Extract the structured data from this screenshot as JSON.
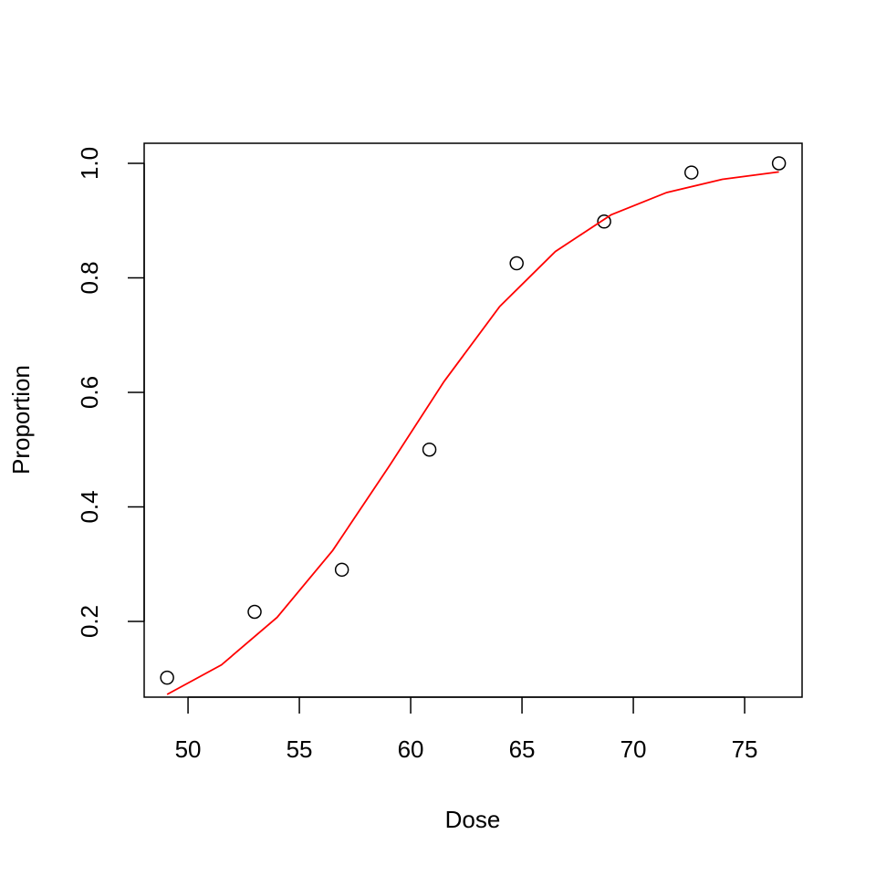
{
  "chart_data": {
    "type": "scatter",
    "x_label": "Dose",
    "y_label": "Proportion",
    "xlim": [
      48.03,
      77.58
    ],
    "ylim": [
      0.0677,
      1.035
    ],
    "xticks": [
      50,
      55,
      60,
      65,
      70,
      75
    ],
    "yticks": [
      0.2,
      0.4,
      0.6,
      0.8,
      {
        "value": 1,
        "label": "1.0"
      }
    ],
    "series": [
      {
        "type": "scatter",
        "color": "#000000",
        "x": [
          49.06,
          52.99,
          56.91,
          60.84,
          64.76,
          68.69,
          72.61,
          76.54
        ],
        "values": [
          0.1017,
          0.2167,
          0.2903,
          0.5,
          0.8254,
          0.8983,
          0.9839,
          1
        ]
      },
      {
        "type": "line",
        "color": "#ff0000",
        "x": [
          49.06,
          51.5,
          54,
          56.5,
          59,
          61.5,
          64,
          66.5,
          69,
          71.5,
          74,
          76.54
        ],
        "values": [
          0.0725,
          0.124,
          0.207,
          0.324,
          0.469,
          0.619,
          0.75,
          0.846,
          0.91,
          0.949,
          0.972,
          0.985
        ]
      }
    ]
  }
}
